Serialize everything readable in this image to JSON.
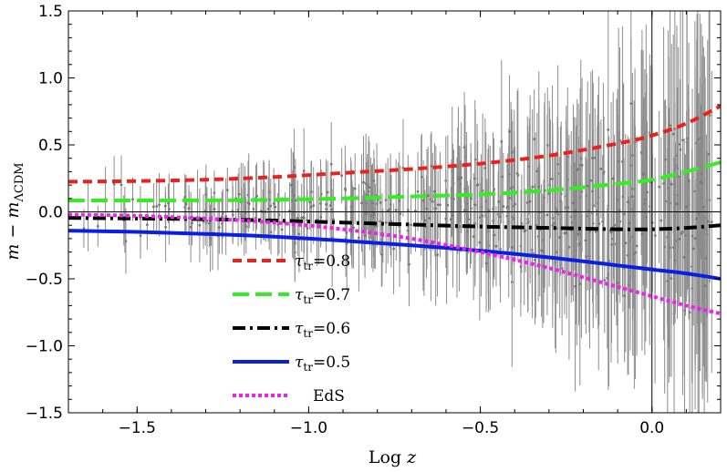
{
  "chart_data": {
    "type": "line",
    "title": "",
    "xlabel_main": "Log",
    "xlabel_var": "z",
    "ylabel_main": "m − m",
    "ylabel_sub": "ΛCDM",
    "xlim": [
      -1.7,
      0.2
    ],
    "ylim": [
      -1.5,
      1.5
    ],
    "x_ticks": [
      -1.5,
      -1.0,
      -0.5,
      0.0
    ],
    "x_tick_labels": [
      "−1.5",
      "−1.0",
      "−0.5",
      "0.0"
    ],
    "y_ticks": [
      -1.5,
      -1.0,
      -0.5,
      0.0,
      0.5,
      1.0,
      1.5
    ],
    "y_tick_labels": [
      "−1.5",
      "−1.0",
      "−0.5",
      "0.0",
      "0.5",
      "1.0",
      "1.5"
    ],
    "legend_placement": "lower-center",
    "series": [
      {
        "name": "τtr=0.8",
        "sym": "τ",
        "sub": "tr",
        "val": "=0.8",
        "color": "#e8231c",
        "dash": "10,6",
        "width": 4,
        "x": [
          -1.7,
          -1.5,
          -1.3,
          -1.1,
          -0.9,
          -0.7,
          -0.5,
          -0.3,
          -0.1,
          0.0,
          0.1,
          0.2
        ],
        "y": [
          0.225,
          0.23,
          0.24,
          0.26,
          0.29,
          0.32,
          0.36,
          0.42,
          0.51,
          0.57,
          0.66,
          0.79
        ]
      },
      {
        "name": "τtr=0.7",
        "sym": "τ",
        "sub": "tr",
        "val": "=0.7",
        "color": "#33ee22",
        "dash": "18,7",
        "width": 4,
        "x": [
          -1.7,
          -1.5,
          -1.3,
          -1.1,
          -0.9,
          -0.7,
          -0.5,
          -0.3,
          -0.1,
          0.0,
          0.1,
          0.2
        ],
        "y": [
          0.085,
          0.085,
          0.086,
          0.09,
          0.1,
          0.115,
          0.13,
          0.16,
          0.21,
          0.24,
          0.3,
          0.37
        ]
      },
      {
        "name": "τtr=0.6",
        "sym": "τ",
        "sub": "tr",
        "val": "=0.6",
        "color": "#000000",
        "dash": "14,5,3,5",
        "width": 4,
        "x": [
          -1.7,
          -1.5,
          -1.3,
          -1.1,
          -0.9,
          -0.7,
          -0.5,
          -0.3,
          -0.1,
          0.0,
          0.1,
          0.2
        ],
        "y": [
          -0.045,
          -0.05,
          -0.055,
          -0.065,
          -0.08,
          -0.095,
          -0.11,
          -0.12,
          -0.13,
          -0.13,
          -0.12,
          -0.1
        ]
      },
      {
        "name": "τtr=0.5",
        "sym": "τ",
        "sub": "tr",
        "val": "=0.5",
        "color": "#0a1ee6",
        "dash": "",
        "width": 4,
        "x": [
          -1.7,
          -1.5,
          -1.3,
          -1.1,
          -0.9,
          -0.7,
          -0.5,
          -0.3,
          -0.1,
          0.0,
          0.1,
          0.2
        ],
        "y": [
          -0.14,
          -0.15,
          -0.165,
          -0.185,
          -0.215,
          -0.25,
          -0.29,
          -0.34,
          -0.4,
          -0.43,
          -0.46,
          -0.5
        ]
      },
      {
        "name": "EdS",
        "sym": "",
        "sub": "",
        "val": "EdS",
        "color": "#ee22ee",
        "dash": "4,3",
        "width": 4,
        "x": [
          -1.7,
          -1.5,
          -1.3,
          -1.1,
          -0.9,
          -0.7,
          -0.5,
          -0.3,
          -0.1,
          0.0,
          0.1,
          0.2
        ],
        "y": [
          -0.02,
          -0.03,
          -0.05,
          -0.08,
          -0.13,
          -0.2,
          -0.3,
          -0.42,
          -0.56,
          -0.63,
          -0.7,
          -0.76
        ]
      }
    ],
    "data_points": {
      "name": "supernova data with error bars",
      "color": "#8c8c8c",
      "count": 580,
      "x_range": [
        -1.7,
        0.18
      ],
      "trend": "scatter around zero, spread increasing with redshift"
    }
  }
}
